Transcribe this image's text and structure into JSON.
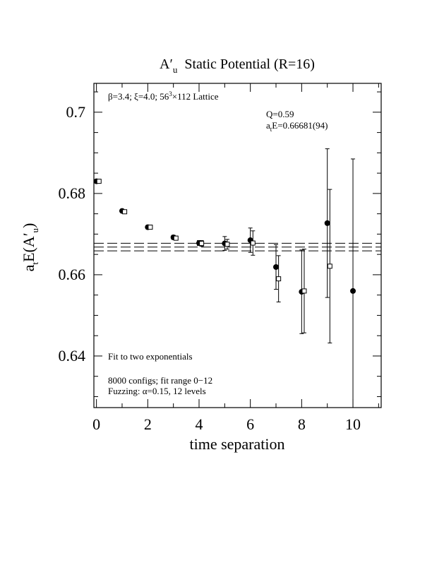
{
  "chart_data": {
    "type": "scatter",
    "title": [
      "A′",
      "u",
      "Static Potential (R=16)"
    ],
    "xlabel": "time separation",
    "ylabel": [
      "a",
      "t",
      "E(A′",
      "u",
      ")"
    ],
    "annotations": {
      "lattice": [
        "β=3.4; ξ=4.0; 56",
        "3",
        "×112 Lattice"
      ],
      "q": "Q=0.59",
      "energy": [
        "a",
        "t",
        "E=0.66681(94)"
      ],
      "fit": "Fit to two exponentials",
      "configs": "8000 configs; fit range 0−12",
      "fuzzing": "Fuzzing: α=0.15, 12 levels"
    },
    "xlim": [
      -0.1,
      11.1
    ],
    "ylim": [
      0.6273,
      0.7071
    ],
    "xticks": [
      0,
      2,
      4,
      6,
      8,
      10
    ],
    "yticks": [
      0.64,
      0.66,
      0.68,
      0.7
    ],
    "xminor": [
      1,
      3,
      5,
      7,
      9,
      11
    ],
    "yminor": [
      0.63,
      0.635,
      0.645,
      0.65,
      0.655,
      0.665,
      0.67,
      0.675,
      0.685,
      0.69,
      0.695,
      0.705
    ],
    "fit_lines": [
      0.66587,
      0.66681,
      0.66775
    ],
    "series": [
      {
        "marker": "circle",
        "color": "#000000",
        "x": [
          0,
          1,
          2,
          3,
          4,
          5,
          6,
          7,
          8,
          9,
          10
        ],
        "values": [
          0.683,
          0.6757,
          0.6717,
          0.6692,
          0.6678,
          0.6677,
          0.6685,
          0.6619,
          0.6558,
          0.6727,
          0.656
        ],
        "errors": [
          0.0004,
          0.0004,
          0.0004,
          0.0005,
          0.0006,
          0.0017,
          0.003,
          0.0055,
          0.0103,
          0.0183,
          0.0325
        ]
      },
      {
        "marker": "square",
        "color": "#000000",
        "x": [
          0.1,
          1.1,
          2.1,
          3.1,
          4.1,
          5.1,
          6.1,
          7.1,
          8.1,
          9.1
        ],
        "values": [
          0.683,
          0.6755,
          0.6717,
          0.669,
          0.6677,
          0.6675,
          0.6678,
          0.659,
          0.656,
          0.6621
        ],
        "errors": [
          0.0004,
          0.0004,
          0.0005,
          0.0005,
          0.0007,
          0.0012,
          0.003,
          0.0057,
          0.0103,
          0.0189
        ]
      }
    ]
  }
}
